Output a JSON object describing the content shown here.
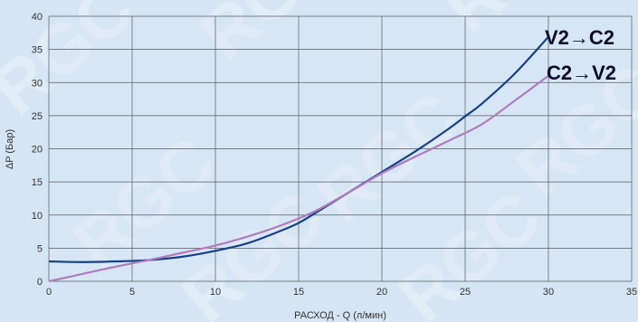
{
  "watermark": "RGC",
  "chart_data": {
    "type": "line",
    "title": "",
    "xlabel": "РАСХОД - Q (л/мин)",
    "ylabel": "ΔP (Бар)",
    "xlim": [
      0,
      35
    ],
    "ylim": [
      0,
      40
    ],
    "xticks": [
      0,
      5,
      10,
      15,
      20,
      25,
      30,
      35
    ],
    "yticks": [
      0,
      5,
      10,
      15,
      20,
      25,
      30,
      35,
      40
    ],
    "grid": true,
    "series": [
      {
        "name": "V2→C2",
        "color": "#16408a",
        "x": [
          0,
          2,
          4,
          6,
          8,
          10,
          12,
          14,
          15,
          16,
          18,
          20,
          22,
          24,
          25,
          26,
          28,
          30
        ],
        "y": [
          3.0,
          2.9,
          3.0,
          3.2,
          3.7,
          4.6,
          5.8,
          7.7,
          8.8,
          10.3,
          13.4,
          16.5,
          19.6,
          23.0,
          24.9,
          26.8,
          31.4,
          36.9
        ]
      },
      {
        "name": "C2→V2",
        "color": "#b07cc0",
        "x": [
          0,
          2,
          4,
          6,
          8,
          10,
          12,
          14,
          16,
          18,
          20,
          22,
          24,
          26,
          28,
          30
        ],
        "y": [
          0.0,
          1.1,
          2.2,
          3.2,
          4.3,
          5.4,
          6.8,
          8.5,
          10.6,
          13.4,
          16.3,
          18.8,
          21.2,
          23.7,
          27.3,
          31.0
        ]
      }
    ]
  }
}
